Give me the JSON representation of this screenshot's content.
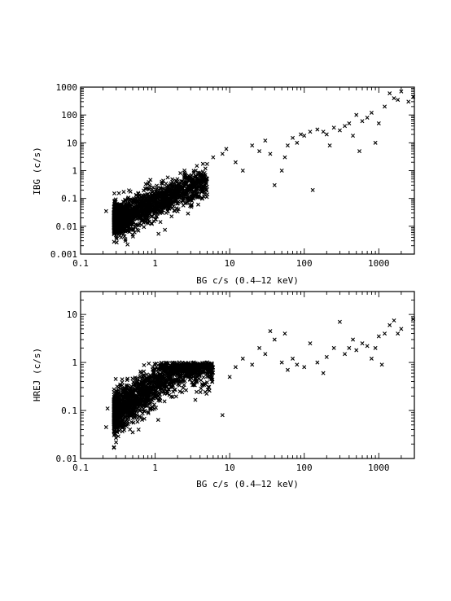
{
  "chart_data": [
    {
      "type": "scatter",
      "xlabel": "BG c/s (0.4–12 keV)",
      "ylabel": "IBG (c/s)",
      "xscale": "log",
      "yscale": "log",
      "xlim": [
        0.1,
        3000
      ],
      "ylim": [
        0.001,
        1000
      ],
      "xticks": [
        "0.1",
        "1",
        "10",
        "100",
        "1000"
      ],
      "yticks": [
        "0.001",
        "0.01",
        "0.1",
        "1",
        "10",
        "100",
        "1000"
      ],
      "marker": "x",
      "grid": false,
      "trend": {
        "slope": 1.15,
        "intercept": -1.15,
        "scatter_dex": 0.28
      },
      "cloud": {
        "x_range": [
          0.28,
          5
        ],
        "n": 1800
      },
      "points": [
        [
          0.22,
          0.035
        ],
        [
          0.3,
          0.008
        ],
        [
          0.35,
          0.004
        ],
        [
          0.4,
          0.003
        ],
        [
          0.5,
          0.005
        ],
        [
          6,
          3
        ],
        [
          8,
          4
        ],
        [
          9,
          6
        ],
        [
          12,
          2
        ],
        [
          15,
          1
        ],
        [
          20,
          8
        ],
        [
          25,
          5
        ],
        [
          30,
          12
        ],
        [
          35,
          4
        ],
        [
          40,
          0.3
        ],
        [
          50,
          1
        ],
        [
          55,
          3
        ],
        [
          60,
          8
        ],
        [
          70,
          15
        ],
        [
          80,
          10
        ],
        [
          90,
          20
        ],
        [
          100,
          18
        ],
        [
          120,
          25
        ],
        [
          130,
          0.2
        ],
        [
          150,
          30
        ],
        [
          180,
          25
        ],
        [
          200,
          20
        ],
        [
          220,
          8
        ],
        [
          250,
          35
        ],
        [
          300,
          28
        ],
        [
          350,
          40
        ],
        [
          400,
          50
        ],
        [
          450,
          18
        ],
        [
          500,
          100
        ],
        [
          550,
          5
        ],
        [
          600,
          60
        ],
        [
          700,
          80
        ],
        [
          800,
          120
        ],
        [
          900,
          10
        ],
        [
          1000,
          50
        ],
        [
          1200,
          200
        ],
        [
          1400,
          600
        ],
        [
          1600,
          400
        ],
        [
          1800,
          350
        ],
        [
          2000,
          700
        ],
        [
          2500,
          300
        ],
        [
          2900,
          450
        ]
      ]
    },
    {
      "type": "scatter",
      "xlabel": "BG c/s (0.4–12 keV)",
      "ylabel": "HREJ (c/s)",
      "xscale": "log",
      "yscale": "log",
      "xlim": [
        0.1,
        3000
      ],
      "ylim": [
        0.01,
        30
      ],
      "xticks": [
        "0.1",
        "1",
        "10",
        "100",
        "1000"
      ],
      "yticks": [
        "0.01",
        "0.1",
        "1",
        "10"
      ],
      "marker": "x",
      "grid": false,
      "trend": {
        "model": "saturating",
        "scale": 0.35,
        "scatter_dex": 0.22,
        "ceiling": 0.9
      },
      "cloud": {
        "x_range": [
          0.28,
          6
        ],
        "n": 1800
      },
      "points": [
        [
          0.22,
          0.045
        ],
        [
          0.23,
          0.11
        ],
        [
          0.3,
          0.06
        ],
        [
          0.5,
          0.035
        ],
        [
          0.6,
          0.04
        ],
        [
          8,
          0.08
        ],
        [
          10,
          0.5
        ],
        [
          12,
          0.8
        ],
        [
          15,
          1.2
        ],
        [
          20,
          0.9
        ],
        [
          25,
          2
        ],
        [
          30,
          1.5
        ],
        [
          35,
          4.5
        ],
        [
          40,
          3
        ],
        [
          50,
          1
        ],
        [
          55,
          4
        ],
        [
          60,
          0.7
        ],
        [
          70,
          1.2
        ],
        [
          80,
          0.9
        ],
        [
          100,
          0.8
        ],
        [
          120,
          2.5
        ],
        [
          150,
          1
        ],
        [
          180,
          0.6
        ],
        [
          200,
          1.3
        ],
        [
          250,
          2
        ],
        [
          300,
          7
        ],
        [
          350,
          1.5
        ],
        [
          400,
          2
        ],
        [
          450,
          3
        ],
        [
          500,
          1.8
        ],
        [
          600,
          2.5
        ],
        [
          700,
          2.2
        ],
        [
          800,
          1.2
        ],
        [
          900,
          2
        ],
        [
          1000,
          3.5
        ],
        [
          1100,
          0.9
        ],
        [
          1200,
          4
        ],
        [
          1400,
          6
        ],
        [
          1600,
          7.5
        ],
        [
          1800,
          4
        ],
        [
          2000,
          5
        ],
        [
          2900,
          8
        ]
      ]
    }
  ]
}
